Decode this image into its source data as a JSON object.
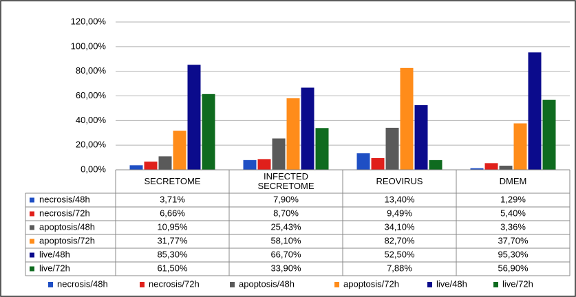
{
  "chart_data": {
    "type": "bar",
    "categories": [
      "SECRETOME",
      "INFECTED SECRETOME",
      "REOVIRUS",
      "DMEM"
    ],
    "series": [
      {
        "name": "necrosis/48h",
        "color": "#1f4fc4",
        "values": [
          3.71,
          7.9,
          13.4,
          1.29
        ],
        "value_labels": [
          "3,71%",
          "7,90%",
          "13,40%",
          "1,29%"
        ]
      },
      {
        "name": "necrosis/72h",
        "color": "#e0201b",
        "values": [
          6.66,
          8.7,
          9.49,
          5.4
        ],
        "value_labels": [
          "6,66%",
          "8,70%",
          "9,49%",
          "5,40%"
        ]
      },
      {
        "name": "apoptosis/48h",
        "color": "#5a5a5a",
        "values": [
          10.95,
          25.43,
          34.1,
          3.36
        ],
        "value_labels": [
          "10,95%",
          "25,43%",
          "34,10%",
          "3,36%"
        ]
      },
      {
        "name": "apoptosis/72h",
        "color": "#ff8c1a",
        "values": [
          31.77,
          58.1,
          82.7,
          37.7
        ],
        "value_labels": [
          "31,77%",
          "58,10%",
          "82,70%",
          "37,70%"
        ]
      },
      {
        "name": "live/48h",
        "color": "#0b0b8c",
        "values": [
          85.3,
          66.7,
          52.5,
          95.3
        ],
        "value_labels": [
          "85,30%",
          "66,70%",
          "52,50%",
          "95,30%"
        ]
      },
      {
        "name": "live/72h",
        "color": "#0f6b1f",
        "values": [
          61.5,
          33.9,
          7.88,
          56.9
        ],
        "value_labels": [
          "61,50%",
          "33,90%",
          "7,88%",
          "56,90%"
        ]
      }
    ],
    "ylim": [
      0,
      120
    ],
    "yticks": [
      {
        "value": 0,
        "label": "0,00%"
      },
      {
        "value": 20,
        "label": "20,00%"
      },
      {
        "value": 40,
        "label": "40,00%"
      },
      {
        "value": 60,
        "label": "60,00%"
      },
      {
        "value": 80,
        "label": "80,00%"
      },
      {
        "value": 100,
        "label": "100,00%"
      },
      {
        "value": 120,
        "label": "120,00%"
      }
    ],
    "grid": true
  }
}
